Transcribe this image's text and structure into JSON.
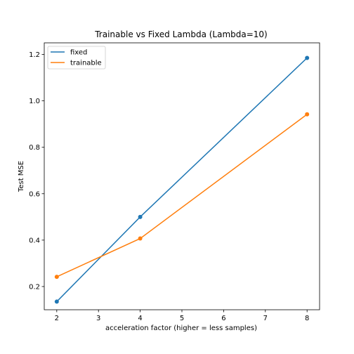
{
  "chart_data": {
    "type": "line",
    "title": "Trainable vs Fixed Lambda (Lambda=10)",
    "xlabel": "acceleration factor (higher = less samples)",
    "ylabel": "Test MSE",
    "x": [
      2,
      4,
      8
    ],
    "xlim": [
      1.7,
      8.3
    ],
    "ylim": [
      0.1,
      1.25
    ],
    "xticks": [
      2,
      3,
      4,
      5,
      6,
      7,
      8
    ],
    "yticks": [
      0.2,
      0.4,
      0.6,
      0.8,
      1.0,
      1.2
    ],
    "xtick_labels": [
      "2",
      "3",
      "4",
      "5",
      "6",
      "7",
      "8"
    ],
    "ytick_labels": [
      "0.2",
      "0.4",
      "0.6",
      "0.8",
      "1.0",
      "1.2"
    ],
    "grid": false,
    "legend_position": "top-left",
    "series": [
      {
        "name": "fixed",
        "color": "#1f77b4",
        "values": [
          0.135,
          0.5,
          1.185
        ]
      },
      {
        "name": "trainable",
        "color": "#ff7f0e",
        "values": [
          0.242,
          0.407,
          0.942
        ]
      }
    ]
  }
}
